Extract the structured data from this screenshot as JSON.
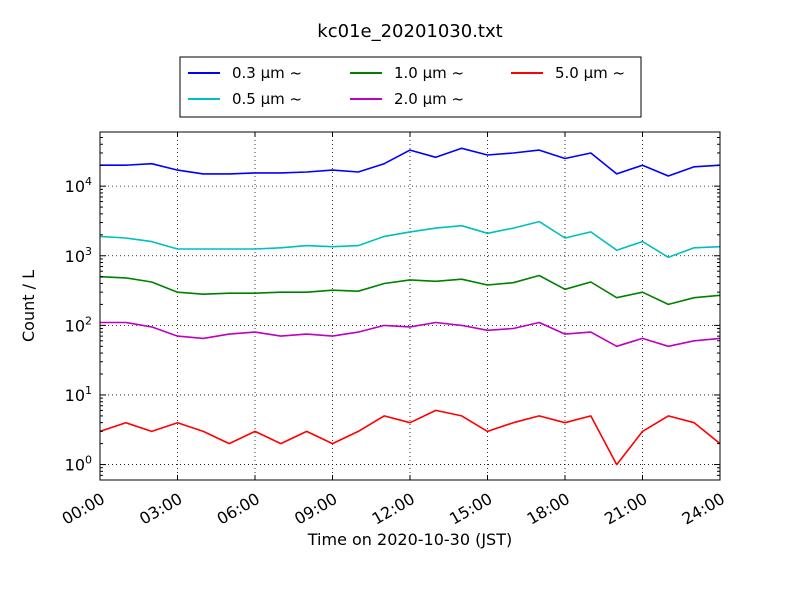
{
  "chart_data": {
    "type": "line",
    "title": "kc01e_20201030.txt",
    "xlabel": "Time on 2020-10-30 (JST)",
    "ylabel": "Count / L",
    "yscale": "log",
    "xlim": [
      "00:00",
      "24:00"
    ],
    "ylim": [
      0.6,
      60000
    ],
    "grid": true,
    "legend_position": "top-center",
    "x_ticks": [
      "00:00",
      "03:00",
      "06:00",
      "09:00",
      "12:00",
      "15:00",
      "18:00",
      "21:00",
      "24:00"
    ],
    "y_ticks": [
      {
        "base": "10",
        "exp": "0",
        "value": 1
      },
      {
        "base": "10",
        "exp": "1",
        "value": 10
      },
      {
        "base": "10",
        "exp": "2",
        "value": 100
      },
      {
        "base": "10",
        "exp": "3",
        "value": 1000
      },
      {
        "base": "10",
        "exp": "4",
        "value": 10000
      }
    ],
    "x_hours": [
      0,
      1,
      2,
      3,
      4,
      5,
      6,
      7,
      8,
      9,
      10,
      11,
      12,
      13,
      14,
      15,
      16,
      17,
      18,
      19,
      20,
      21,
      22,
      23,
      24
    ],
    "series": [
      {
        "name": "0.3 μm ~",
        "color": "#0000ff",
        "values": [
          20000,
          20000,
          21000,
          17000,
          15000,
          15000,
          15500,
          15500,
          16000,
          17000,
          16000,
          21000,
          33000,
          26000,
          35000,
          28000,
          30000,
          33000,
          25000,
          30000,
          15000,
          20000,
          14000,
          19000,
          20000
        ]
      },
      {
        "name": "0.5 μm ~",
        "color": "#00bfbf",
        "values": [
          1900,
          1800,
          1600,
          1250,
          1250,
          1250,
          1250,
          1300,
          1400,
          1350,
          1400,
          1900,
          2200,
          2500,
          2700,
          2100,
          2500,
          3100,
          1800,
          2200,
          1200,
          1600,
          950,
          1300,
          1350
        ]
      },
      {
        "name": "1.0 μm ~",
        "color": "#008000",
        "values": [
          500,
          480,
          420,
          300,
          280,
          290,
          290,
          300,
          300,
          320,
          310,
          400,
          450,
          430,
          460,
          380,
          410,
          520,
          330,
          420,
          250,
          300,
          200,
          250,
          270
        ]
      },
      {
        "name": "2.0 μm ~",
        "color": "#bf00bf",
        "values": [
          110,
          110,
          95,
          70,
          65,
          75,
          80,
          70,
          75,
          70,
          80,
          100,
          95,
          110,
          100,
          85,
          90,
          110,
          75,
          80,
          50,
          65,
          50,
          60,
          65
        ]
      },
      {
        "name": "5.0 μm ~",
        "color": "#ff0000",
        "values": [
          3,
          4,
          3,
          4,
          3,
          2,
          3,
          2,
          3,
          2,
          3,
          5,
          4,
          6,
          5,
          3,
          4,
          5,
          4,
          5,
          1,
          3,
          5,
          4,
          2
        ]
      }
    ]
  }
}
